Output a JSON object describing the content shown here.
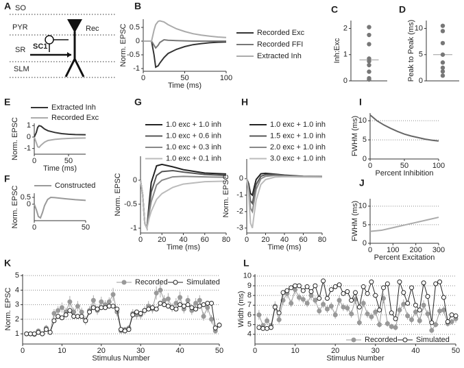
{
  "diagram": {
    "label": "A",
    "layers": [
      "SO",
      "PYR",
      "SR",
      "SLM"
    ],
    "cell": "Rec",
    "input": "SC1"
  },
  "chart_data": [
    {
      "type": "line",
      "label": "B",
      "ylabel": "Norm. EPSC",
      "xlabel": "Time (ms)",
      "xlim": [
        0,
        100
      ],
      "xticks": [
        0,
        50,
        100
      ],
      "ylim": [
        -1.1,
        0.8
      ],
      "yticks": [
        -1,
        -0.5,
        0,
        0.5
      ],
      "x": [
        0,
        10,
        13,
        15,
        18,
        20,
        25,
        30,
        40,
        50,
        60,
        70,
        80,
        90,
        100
      ],
      "series": [
        {
          "name": "Recorded Exc",
          "color": "#333333",
          "values": [
            0,
            0,
            -0.5,
            -0.95,
            -0.9,
            -0.8,
            -0.6,
            -0.45,
            -0.3,
            -0.2,
            -0.13,
            -0.09,
            -0.06,
            -0.04,
            -0.03
          ]
        },
        {
          "name": "Recorded FFI",
          "color": "#777777",
          "values": [
            0,
            0,
            -0.15,
            -0.25,
            -0.15,
            -0.05,
            0.05,
            0.03,
            0.02,
            0.01,
            0,
            0,
            0,
            0,
            0
          ]
        },
        {
          "name": "Extracted Inh",
          "color": "#aaaaaa",
          "values": [
            0,
            0,
            0.4,
            0.6,
            0.72,
            0.74,
            0.7,
            0.6,
            0.45,
            0.35,
            0.27,
            0.22,
            0.18,
            0.15,
            0.13
          ]
        }
      ]
    },
    {
      "type": "strip",
      "label": "C",
      "ylabel": "Inh:Exc",
      "ylim": [
        0,
        2.3
      ],
      "yticks": [
        0,
        1,
        2
      ],
      "color": "#777777",
      "values": [
        2.05,
        1.75,
        1.4,
        0.85,
        0.75,
        0.6,
        0.35,
        0.1,
        0.05
      ],
      "mean": 0.8
    },
    {
      "type": "strip",
      "label": "D",
      "ylabel": "Peak to Peak (ms)",
      "ylim": [
        0,
        11.5
      ],
      "yticks": [
        0,
        5,
        10
      ],
      "color": "#777777",
      "values": [
        10.5,
        9.5,
        7.2,
        5,
        3.5,
        2.5,
        1.8,
        1.0
      ],
      "mean": 5
    },
    {
      "type": "line",
      "label": "E",
      "ylabel": "Norm. EPSC",
      "xlabel": "Time (ms)",
      "xlim": [
        0,
        75
      ],
      "xticks": [
        0,
        50
      ],
      "ylim": [
        -1.5,
        1.2
      ],
      "yticks": [
        -1,
        0,
        1
      ],
      "x": [
        0,
        3,
        5,
        7,
        10,
        15,
        20,
        30,
        40,
        50,
        60,
        75
      ],
      "series": [
        {
          "name": "Extracted Inh",
          "color": "#333333",
          "values": [
            0,
            0.4,
            0.85,
            1.0,
            0.95,
            0.7,
            0.55,
            0.4,
            0.3,
            0.25,
            0.22,
            0.2
          ]
        },
        {
          "name": "Recorded Exc",
          "color": "#aaaaaa",
          "values": [
            0,
            -0.5,
            -0.85,
            -0.9,
            -0.7,
            -0.45,
            -0.3,
            -0.2,
            -0.15,
            -0.12,
            -0.1,
            -0.08
          ]
        }
      ]
    },
    {
      "type": "line",
      "label": "F",
      "ylabel": "Norm. EPSC",
      "xlim": [
        0,
        50
      ],
      "xticks": [
        0,
        50
      ],
      "ylim": [
        -1.2,
        0.8
      ],
      "yticks": [
        0,
        0.5
      ],
      "x": [
        0,
        2,
        4,
        6,
        8,
        10,
        13,
        16,
        20,
        30,
        40,
        50
      ],
      "series": [
        {
          "name": "Constructed",
          "color": "#999999",
          "values": [
            0,
            -0.4,
            -0.9,
            -1.0,
            -0.6,
            -0.1,
            0.35,
            0.5,
            0.48,
            0.4,
            0.33,
            0.28
          ]
        }
      ]
    },
    {
      "type": "line",
      "label": "G",
      "ylabel": "Norm. EPSC",
      "xlabel": "Time (ms)",
      "xlim": [
        0,
        80
      ],
      "xticks": [
        0,
        20,
        40,
        60,
        80
      ],
      "ylim": [
        -1.1,
        0.5
      ],
      "yticks": [
        -1,
        -0.5,
        0
      ],
      "x": [
        0,
        2,
        4,
        6,
        8,
        10,
        15,
        20,
        30,
        40,
        60,
        80
      ],
      "series": [
        {
          "name": "1.0 exc + 1.0 inh",
          "color": "#222222",
          "values": [
            0,
            -0.3,
            -0.9,
            -1,
            -0.5,
            -0.05,
            0.3,
            0.33,
            0.28,
            0.22,
            0.15,
            0.13
          ]
        },
        {
          "name": "1.0 exc + 0.6 inh",
          "color": "#555555",
          "values": [
            0,
            -0.3,
            -0.9,
            -1,
            -0.6,
            -0.25,
            0.1,
            0.18,
            0.2,
            0.17,
            0.12,
            0.1
          ]
        },
        {
          "name": "1.0 exc + 0.3 inh",
          "color": "#888888",
          "values": [
            0,
            -0.3,
            -0.9,
            -1,
            -0.7,
            -0.45,
            -0.1,
            0,
            0.07,
            0.08,
            0.07,
            0.06
          ]
        },
        {
          "name": "1.0 exc + 0.1 inh",
          "color": "#bbbbbb",
          "values": [
            0,
            -0.3,
            -0.9,
            -1,
            -0.8,
            -0.65,
            -0.4,
            -0.28,
            -0.15,
            -0.08,
            -0.03,
            -0.02
          ]
        }
      ]
    },
    {
      "type": "line",
      "label": "H",
      "ylabel": "Norm. EPSC",
      "xlabel": "Time (ms)",
      "xlim": [
        0,
        80
      ],
      "xticks": [
        0,
        20,
        40,
        60,
        80
      ],
      "ylim": [
        -3.3,
        1.2
      ],
      "yticks": [
        -3,
        -2,
        -1,
        0
      ],
      "x": [
        0,
        2,
        4,
        6,
        8,
        10,
        15,
        20,
        30,
        40,
        60,
        80
      ],
      "series": [
        {
          "name": "1.0 exc + 1.0 inh",
          "color": "#222222",
          "values": [
            0,
            -0.3,
            -0.9,
            -1,
            -0.5,
            -0.05,
            0.3,
            0.33,
            0.28,
            0.22,
            0.15,
            0.13
          ]
        },
        {
          "name": "1.5 exc + 1.0 inh",
          "color": "#555555",
          "values": [
            0,
            -0.45,
            -1.35,
            -1.5,
            -0.9,
            -0.35,
            0.15,
            0.25,
            0.25,
            0.2,
            0.14,
            0.12
          ]
        },
        {
          "name": "2.0 exc + 1.0 inh",
          "color": "#888888",
          "values": [
            0,
            -0.6,
            -1.8,
            -2,
            -1.3,
            -0.65,
            0,
            0.15,
            0.2,
            0.17,
            0.13,
            0.11
          ]
        },
        {
          "name": "3.0 exc + 1.0 inh",
          "color": "#bbbbbb",
          "values": [
            0,
            -0.9,
            -2.7,
            -3,
            -2.1,
            -1.3,
            -0.35,
            -0.05,
            0.1,
            0.12,
            0.1,
            0.09
          ]
        }
      ]
    },
    {
      "type": "line",
      "label": "I",
      "ylabel": "FWHM (ms)",
      "xlabel": "Percent Inhibition",
      "grid": true,
      "xlim": [
        0,
        100
      ],
      "xticks": [
        0,
        50,
        100
      ],
      "ylim": [
        0,
        12
      ],
      "yticks": [
        0,
        5,
        10
      ],
      "x": [
        0,
        10,
        20,
        30,
        40,
        50,
        60,
        70,
        80,
        90,
        100
      ],
      "series": [
        {
          "color": "#666666",
          "values": [
            11.5,
            10,
            8.9,
            8,
            7.2,
            6.5,
            6,
            5.6,
            5.2,
            4.9,
            4.7
          ]
        }
      ]
    },
    {
      "type": "line",
      "label": "J",
      "ylabel": "FWHM (ms)",
      "xlabel": "Percent Excitation",
      "grid": true,
      "xlim": [
        0,
        300
      ],
      "xticks": [
        0,
        100,
        200,
        300
      ],
      "ylim": [
        0,
        12
      ],
      "yticks": [
        0,
        5,
        10
      ],
      "x": [
        0,
        50,
        100,
        150,
        200,
        250,
        300
      ],
      "series": [
        {
          "color": "#aaaaaa",
          "values": [
            3.2,
            3.5,
            4.2,
            4.9,
            5.6,
            6.3,
            7
          ]
        }
      ]
    },
    {
      "type": "line",
      "label": "K",
      "ylabel": "Norm. EPSC",
      "xlabel": "Stimulus Number",
      "grid": true,
      "xlim": [
        0,
        50
      ],
      "xticks": [
        0,
        10,
        20,
        30,
        40,
        50
      ],
      "ylim": [
        0.3,
        5.1
      ],
      "yticks": [
        1,
        2,
        3,
        4,
        5
      ],
      "x": [
        1,
        2,
        3,
        4,
        5,
        6,
        7,
        8,
        9,
        10,
        11,
        12,
        13,
        14,
        15,
        16,
        17,
        18,
        19,
        20,
        21,
        22,
        23,
        24,
        25,
        26,
        27,
        28,
        29,
        30,
        31,
        32,
        33,
        34,
        35,
        36,
        37,
        38,
        39,
        40,
        41,
        42,
        43,
        44,
        45,
        46,
        47,
        48,
        49,
        50
      ],
      "series": [
        {
          "name": "Recorded",
          "color": "#999999",
          "marker": "filled",
          "values": [
            1,
            1,
            0.95,
            1.2,
            1,
            1.4,
            1.1,
            2.4,
            2.6,
            2.8,
            2.5,
            3.2,
            2.5,
            2.9,
            2.5,
            1.9,
            2.6,
            3.3,
            2.6,
            3.2,
            3,
            3.2,
            3.7,
            2.5,
            1.2,
            1.3,
            1.4,
            2.4,
            2.3,
            2.3,
            2.6,
            2.9,
            2.7,
            3.8,
            4.0,
            3.3,
            3.4,
            2.8,
            3.1,
            3.5,
            2.7,
            3.3,
            2.6,
            3.1,
            3.3,
            2.2,
            2.8,
            2.0,
            1.2,
            1.6
          ],
          "errors": [
            0.1,
            0.1,
            0.1,
            0.15,
            0.1,
            0.2,
            0.15,
            0.3,
            0.3,
            0.35,
            0.3,
            0.4,
            0.3,
            0.35,
            0.3,
            0.3,
            0.3,
            0.35,
            0.3,
            0.35,
            0.3,
            0.3,
            0.45,
            0.3,
            0.15,
            0.15,
            0.2,
            0.3,
            0.3,
            0.3,
            0.3,
            0.35,
            0.3,
            0.45,
            0.5,
            0.35,
            0.4,
            0.3,
            0.35,
            0.4,
            0.3,
            0.35,
            0.3,
            0.35,
            0.35,
            0.3,
            0.35,
            0.3,
            0.2,
            0.2
          ]
        },
        {
          "name": "Simulated",
          "color": "#222222",
          "marker": "open",
          "values": [
            1,
            1,
            1,
            1.1,
            1,
            1.3,
            1.1,
            1.9,
            2.2,
            2.1,
            2.3,
            2.6,
            2.2,
            2.2,
            2.2,
            1.9,
            2.5,
            2.8,
            2.7,
            2.8,
            2.8,
            2.9,
            2.9,
            2.7,
            1.3,
            1.2,
            1.3,
            2.3,
            2.5,
            2.4,
            2.6,
            2.7,
            2.8,
            2.7,
            3.1,
            3,
            2.9,
            2.8,
            2.7,
            3,
            2.9,
            3,
            2.8,
            2.7,
            2.9,
            3,
            3.1,
            3.1,
            1.4,
            1.6
          ]
        }
      ]
    },
    {
      "type": "line",
      "label": "L",
      "ylabel": "Width (ms)",
      "xlabel": "Stimulus Number",
      "grid": true,
      "xlim": [
        0,
        50
      ],
      "xticks": [
        0,
        10,
        20,
        30,
        40,
        50
      ],
      "ylim": [
        3,
        10.2
      ],
      "yticks": [
        4,
        5,
        6,
        7,
        8,
        9,
        10
      ],
      "x": [
        1,
        2,
        3,
        4,
        5,
        6,
        7,
        8,
        9,
        10,
        11,
        12,
        13,
        14,
        15,
        16,
        17,
        18,
        19,
        20,
        21,
        22,
        23,
        24,
        25,
        26,
        27,
        28,
        29,
        30,
        31,
        32,
        33,
        34,
        35,
        36,
        37,
        38,
        39,
        40,
        41,
        42,
        43,
        44,
        45,
        46,
        47,
        48,
        49,
        50
      ],
      "series": [
        {
          "name": "Recorded",
          "color": "#999999",
          "marker": "filled",
          "values": [
            6,
            4.9,
            5.4,
            4.9,
            6.9,
            5.5,
            7.5,
            8.2,
            7.2,
            8.6,
            7.8,
            7.6,
            7.2,
            8,
            7.5,
            6.4,
            7.1,
            6.6,
            6.9,
            6,
            7.5,
            6.8,
            6.7,
            6.1,
            7.6,
            5.2,
            7.2,
            6.1,
            5.8,
            6.3,
            5,
            7.7,
            5.1,
            4.8,
            4.7,
            6.5,
            7.1,
            5.9,
            5.5,
            6.3,
            5.4,
            7,
            6.1,
            4.4,
            5,
            6.4,
            6.5,
            5.1,
            5.3,
            5.6
          ],
          "errors": [
            0.5,
            0.3,
            0.4,
            0.3,
            0.5,
            0.4,
            0.5,
            0.5,
            0.4,
            0.5,
            0.4,
            0.4,
            0.4,
            0.5,
            0.4,
            0.4,
            0.4,
            0.4,
            0.4,
            0.4,
            0.5,
            0.4,
            0.4,
            0.4,
            0.5,
            0.3,
            0.4,
            0.4,
            0.4,
            0.4,
            0.3,
            0.5,
            0.3,
            0.3,
            0.3,
            0.4,
            0.5,
            0.4,
            0.4,
            0.4,
            0.4,
            0.5,
            0.4,
            0.3,
            0.3,
            0.4,
            0.4,
            0.3,
            0.3,
            0.4
          ]
        },
        {
          "name": "Simulated",
          "color": "#222222",
          "marker": "open",
          "values": [
            4.7,
            4.6,
            4.6,
            4.7,
            6.8,
            6.2,
            8.3,
            8.5,
            8.8,
            9,
            9,
            8.5,
            8.9,
            8.4,
            9,
            7.7,
            9.5,
            7.7,
            8.6,
            8.9,
            9.1,
            8.2,
            8.4,
            7.5,
            8.3,
            6.8,
            8.9,
            8.2,
            9.4,
            8,
            6.5,
            8.8,
            9.2,
            6.2,
            5.6,
            9.4,
            8.3,
            7.2,
            8.8,
            7,
            6.5,
            9.3,
            7.9,
            5.2,
            9.2,
            9.4,
            7.8,
            5.3,
            6,
            5.9
          ]
        }
      ]
    }
  ]
}
